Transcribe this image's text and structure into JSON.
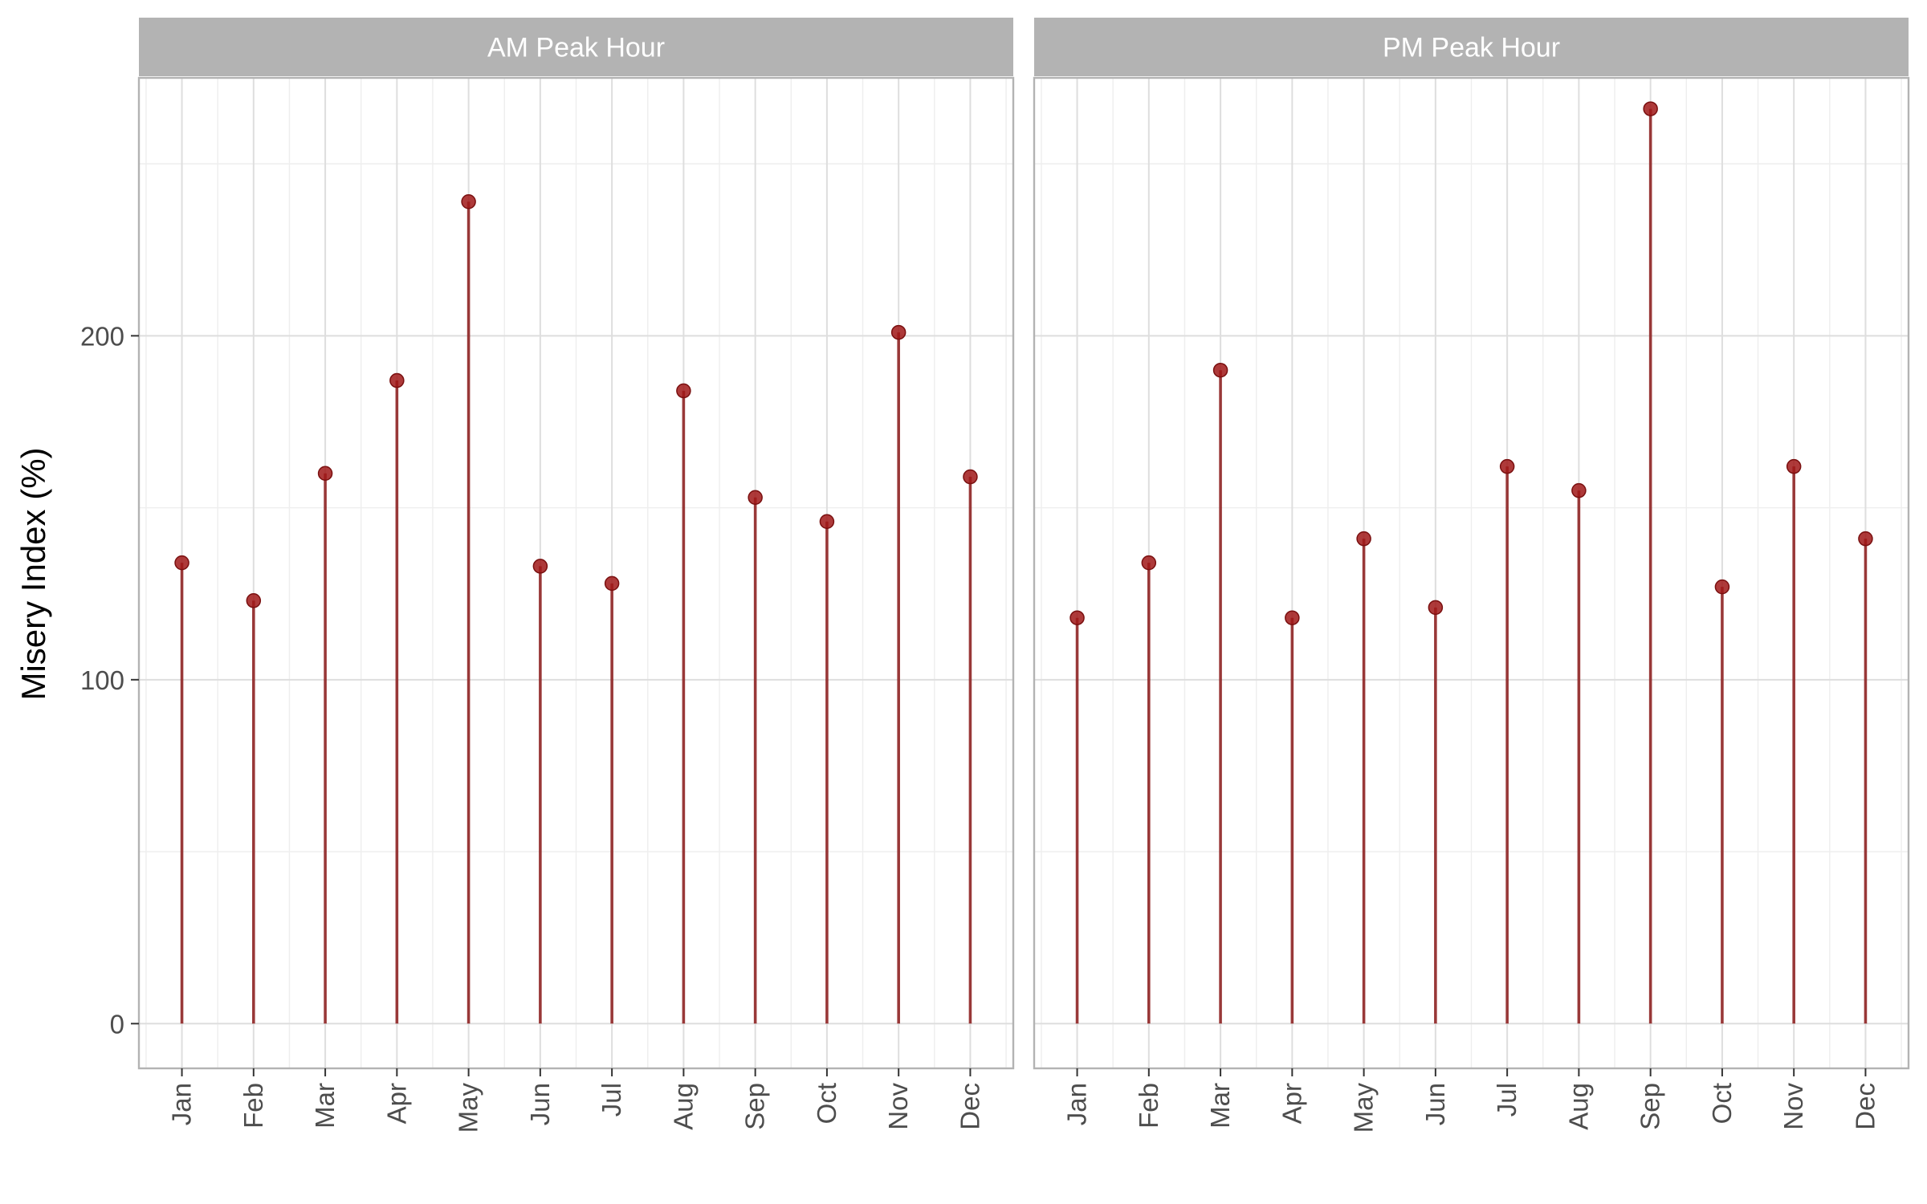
{
  "chart_data": {
    "type": "lollipop",
    "ylabel": "Misery Index (%)",
    "xlabel": "",
    "ylim": [
      -13,
      275
    ],
    "y_ticks": [
      0,
      100,
      200
    ],
    "y_tick_labels": [
      "0",
      "100",
      "200"
    ],
    "categories": [
      "Jan",
      "Feb",
      "Mar",
      "Apr",
      "May",
      "Jun",
      "Jul",
      "Aug",
      "Sep",
      "Oct",
      "Nov",
      "Dec"
    ],
    "grid": true,
    "colors": {
      "stem": "#8b1a1a",
      "point": "#a01818",
      "strip_bg": "#b3b3b3",
      "panel_border": "#b3b3b3",
      "grid_major": "#dedede",
      "grid_minor": "#eeeeee"
    },
    "panels": [
      {
        "title": "AM Peak Hour",
        "values": [
          134,
          123,
          160,
          187,
          239,
          133,
          128,
          184,
          153,
          146,
          201,
          159
        ]
      },
      {
        "title": "PM Peak Hour",
        "values": [
          118,
          134,
          190,
          118,
          141,
          121,
          162,
          155,
          266,
          127,
          162,
          141
        ]
      }
    ]
  }
}
